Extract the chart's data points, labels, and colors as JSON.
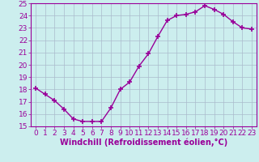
{
  "x": [
    0,
    1,
    2,
    3,
    4,
    5,
    6,
    7,
    8,
    9,
    10,
    11,
    12,
    13,
    14,
    15,
    16,
    17,
    18,
    19,
    20,
    21,
    22,
    23
  ],
  "y": [
    18.1,
    17.6,
    17.1,
    16.4,
    15.6,
    15.4,
    15.4,
    15.4,
    16.5,
    18.0,
    18.6,
    19.9,
    20.9,
    22.3,
    23.6,
    24.0,
    24.1,
    24.3,
    24.8,
    24.5,
    24.1,
    23.5,
    23.0,
    22.9
  ],
  "line_color": "#990099",
  "marker": "+",
  "marker_size": 4,
  "bg_color": "#cceeee",
  "grid_color": "#aabbcc",
  "xlabel": "Windchill (Refroidissement éolien,°C)",
  "xlabel_color": "#990099",
  "tick_color": "#990099",
  "ylim": [
    15,
    25
  ],
  "xlim_min": -0.5,
  "xlim_max": 23.5,
  "yticks": [
    15,
    16,
    17,
    18,
    19,
    20,
    21,
    22,
    23,
    24,
    25
  ],
  "xticks": [
    0,
    1,
    2,
    3,
    4,
    5,
    6,
    7,
    8,
    9,
    10,
    11,
    12,
    13,
    14,
    15,
    16,
    17,
    18,
    19,
    20,
    21,
    22,
    23
  ],
  "font_size": 6.5
}
